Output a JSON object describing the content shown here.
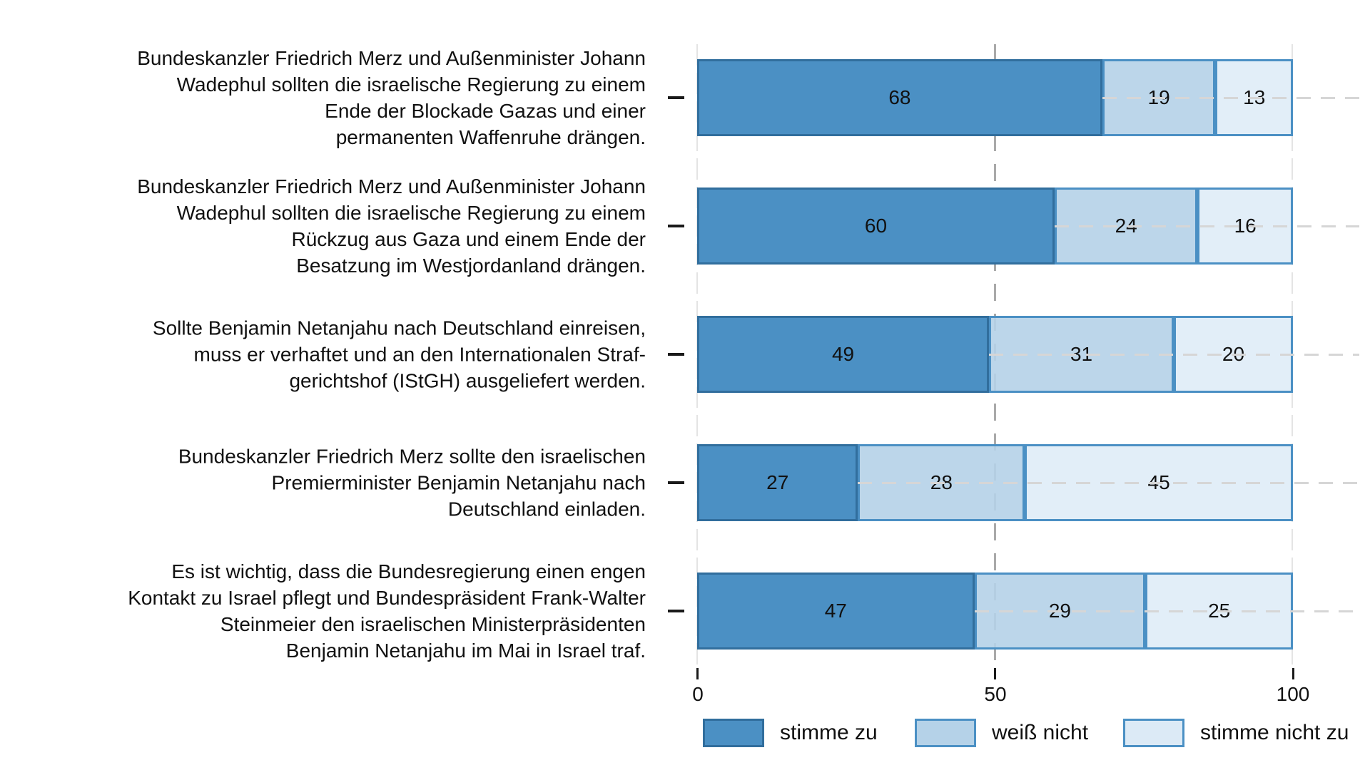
{
  "chart_data": {
    "type": "bar",
    "orientation": "horizontal",
    "stacked": true,
    "title": "",
    "xlabel": "",
    "ylabel": "",
    "xlim": [
      0,
      100
    ],
    "x_ticks": [
      "0",
      "50",
      "100"
    ],
    "legend_position": "bottom",
    "grid": "dashed vertical gridline at 50, faint dashed verticals at 0 and 100, light dashed horizontal line per category row",
    "categories": [
      "Bundeskanzler Friedrich Merz und Außenminister Johann\nWadephul sollten die israelische Regierung zu einem\nEnde der Blockade Gazas und einer\npermanenten Waffenruhe drängen.",
      "Bundeskanzler Friedrich Merz und Außenminister Johann\nWadephul sollten die israelische Regierung zu einem\nRückzug aus Gaza und einem Ende der\nBesatzung im Westjordanland drängen.",
      "Sollte Benjamin Netanjahu nach Deutschland einreisen,\nmuss er verhaftet und an den Internationalen Straf-\ngerichtshof (IStGH) ausgeliefert werden.",
      "Bundeskanzler Friedrich Merz sollte den israelischen\nPremierminister Benjamin Netanjahu nach\nDeutschland einladen.",
      "Es ist wichtig, dass die Bundesregierung einen engen\nKontakt zu Israel pflegt und Bundespräsident Frank-Walter\nSteinmeier den israelischen Ministerpräsidenten\nBenjamin Netanjahu im Mai in Israel traf."
    ],
    "series": [
      {
        "name": "stimme zu",
        "values": [
          68,
          60,
          49,
          27,
          47
        ]
      },
      {
        "name": "weiß nicht",
        "values": [
          19,
          24,
          31,
          28,
          29
        ]
      },
      {
        "name": "stimme nicht zu",
        "values": [
          13,
          16,
          20,
          45,
          25
        ]
      }
    ],
    "colors": {
      "stimme_zu": "#4B90C4",
      "weiss_nicht": "#B5D2E8",
      "stimme_nicht_zu": "#DCEAF6",
      "segment_border": "#4B90C4",
      "dark_segment_border": "#316E9D",
      "row_grid_line": "#D6D6D6",
      "grid_line_50": "#A9A9A9",
      "grid_line_edges": "#E4E4E4",
      "text": "#111111"
    }
  }
}
